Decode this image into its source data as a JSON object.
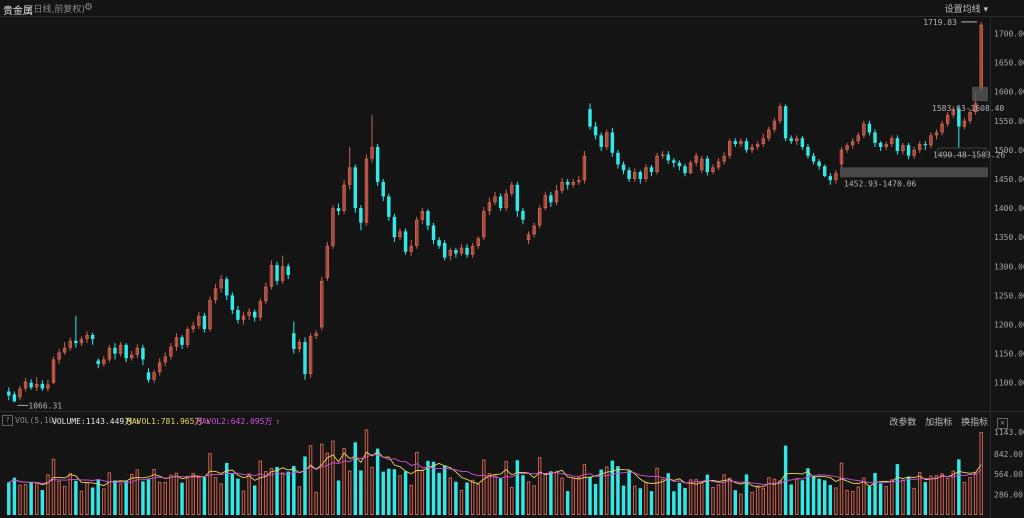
{
  "header": {
    "title": "贵金属",
    "subtitle": "(日线,前复权)",
    "settings_icon": "gear-icon",
    "ma_setting_label": "设置均线 ▾"
  },
  "price_axis": {
    "ticks": [
      "1700.00",
      "1650.00",
      "1600.00",
      "1550.00",
      "1500.00",
      "1450.00",
      "1400.00",
      "1350.00",
      "1300.00",
      "1250.00",
      "1200.00",
      "1150.00",
      "1100.00"
    ]
  },
  "annotations": {
    "high": "1719.83",
    "low": "1066.31",
    "range1": "1583.63-1608.40",
    "range2": "1490.48-1503.26",
    "range3": "1452.93-1470.06"
  },
  "volume_bar": {
    "help_icon": "?",
    "name": "VOL(5,10)",
    "volume": "VOLUME:1143.449万",
    "mavol1": "MAVOL1:781.965万",
    "mavol2": "MAVOL2:642.095万",
    "arrow_symbol": "↑",
    "tools": [
      "改参数",
      "加指标",
      "换指标"
    ],
    "close_icon": "×"
  },
  "volume_axis": {
    "ticks": [
      "1143.00",
      "842.00",
      "564.00",
      "286.00"
    ]
  },
  "colors": {
    "up": "#d0604e",
    "down": "#34e8e8",
    "mavol1": "#e8d85a",
    "mavol2": "#d24fd8",
    "grid": "#262626"
  },
  "chart_data": {
    "type": "candlestick",
    "ylim": [
      1060,
      1730
    ],
    "highest": 1719.83,
    "lowest": 1066.31,
    "candles": [
      [
        1085,
        1078,
        1092,
        1070
      ],
      [
        1080,
        1068,
        1085,
        1066.31
      ],
      [
        1075,
        1090,
        1095,
        1070
      ],
      [
        1090,
        1102,
        1108,
        1085
      ],
      [
        1100,
        1092,
        1106,
        1088
      ],
      [
        1092,
        1098,
        1110,
        1086
      ],
      [
        1098,
        1090,
        1104,
        1086
      ],
      [
        1090,
        1097,
        1105,
        1085
      ],
      [
        1100,
        1140,
        1145,
        1098
      ],
      [
        1140,
        1152,
        1158,
        1132
      ],
      [
        1152,
        1160,
        1170,
        1148
      ],
      [
        1160,
        1172,
        1178,
        1155
      ],
      [
        1172,
        1168,
        1215,
        1160
      ],
      [
        1168,
        1175,
        1180,
        1163
      ],
      [
        1175,
        1182,
        1188,
        1168
      ],
      [
        1182,
        1175,
        1186,
        1165
      ],
      [
        1138,
        1132,
        1142,
        1125
      ],
      [
        1132,
        1140,
        1146,
        1128
      ],
      [
        1140,
        1160,
        1165,
        1135
      ],
      [
        1160,
        1150,
        1168,
        1140
      ],
      [
        1150,
        1165,
        1170,
        1145
      ],
      [
        1165,
        1142,
        1168,
        1135
      ],
      [
        1142,
        1148,
        1155,
        1138
      ],
      [
        1148,
        1160,
        1166,
        1142
      ],
      [
        1160,
        1140,
        1165,
        1130
      ],
      [
        1118,
        1105,
        1125,
        1100
      ],
      [
        1105,
        1118,
        1122,
        1100
      ],
      [
        1118,
        1135,
        1142,
        1112
      ],
      [
        1135,
        1145,
        1152,
        1128
      ],
      [
        1145,
        1162,
        1168,
        1140
      ],
      [
        1162,
        1178,
        1185,
        1155
      ],
      [
        1178,
        1165,
        1182,
        1158
      ],
      [
        1165,
        1192,
        1196,
        1160
      ],
      [
        1192,
        1198,
        1205,
        1186
      ],
      [
        1198,
        1215,
        1222,
        1192
      ],
      [
        1215,
        1192,
        1220,
        1186
      ],
      [
        1192,
        1242,
        1248,
        1188
      ],
      [
        1242,
        1262,
        1270,
        1236
      ],
      [
        1262,
        1278,
        1285,
        1255
      ],
      [
        1278,
        1250,
        1282,
        1242
      ],
      [
        1250,
        1225,
        1255,
        1218
      ],
      [
        1225,
        1208,
        1232,
        1202
      ],
      [
        1208,
        1215,
        1222,
        1200
      ],
      [
        1215,
        1222,
        1228,
        1208
      ],
      [
        1222,
        1212,
        1226,
        1205
      ],
      [
        1212,
        1240,
        1245,
        1206
      ],
      [
        1240,
        1265,
        1272,
        1235
      ],
      [
        1265,
        1302,
        1310,
        1260
      ],
      [
        1302,
        1275,
        1308,
        1268
      ],
      [
        1275,
        1300,
        1318,
        1270
      ],
      [
        1300,
        1285,
        1305,
        1278
      ],
      [
        1185,
        1158,
        1205,
        1150
      ],
      [
        1158,
        1170,
        1175,
        1152
      ],
      [
        1170,
        1115,
        1178,
        1105
      ],
      [
        1115,
        1180,
        1185,
        1108
      ],
      [
        1180,
        1185,
        1190,
        1175
      ],
      [
        1195,
        1275,
        1282,
        1190
      ],
      [
        1280,
        1335,
        1342,
        1275
      ],
      [
        1335,
        1400,
        1405,
        1330
      ],
      [
        1400,
        1395,
        1408,
        1388
      ],
      [
        1395,
        1440,
        1448,
        1390
      ],
      [
        1440,
        1470,
        1505,
        1432
      ],
      [
        1470,
        1400,
        1475,
        1392
      ],
      [
        1400,
        1375,
        1405,
        1362
      ],
      [
        1375,
        1485,
        1492,
        1370
      ],
      [
        1485,
        1505,
        1560,
        1478
      ],
      [
        1505,
        1445,
        1510,
        1438
      ],
      [
        1445,
        1420,
        1450,
        1412
      ],
      [
        1420,
        1385,
        1425,
        1378
      ],
      [
        1385,
        1350,
        1390,
        1342
      ],
      [
        1350,
        1360,
        1365,
        1345
      ],
      [
        1360,
        1325,
        1365,
        1320
      ],
      [
        1325,
        1335,
        1345,
        1318
      ],
      [
        1335,
        1380,
        1385,
        1330
      ],
      [
        1380,
        1395,
        1400,
        1372
      ],
      [
        1395,
        1370,
        1398,
        1362
      ],
      [
        1370,
        1345,
        1375,
        1338
      ],
      [
        1345,
        1335,
        1350,
        1330
      ],
      [
        1340,
        1315,
        1345,
        1310
      ],
      [
        1318,
        1328,
        1332,
        1310
      ],
      [
        1328,
        1322,
        1332,
        1315
      ],
      [
        1322,
        1332,
        1338,
        1318
      ],
      [
        1332,
        1320,
        1338,
        1315
      ],
      [
        1320,
        1335,
        1340,
        1315
      ],
      [
        1335,
        1348,
        1352,
        1330
      ],
      [
        1350,
        1395,
        1402,
        1345
      ],
      [
        1395,
        1410,
        1418,
        1388
      ],
      [
        1410,
        1420,
        1428,
        1405
      ],
      [
        1420,
        1400,
        1425,
        1395
      ],
      [
        1400,
        1425,
        1432,
        1395
      ],
      [
        1425,
        1440,
        1445,
        1420
      ],
      [
        1440,
        1395,
        1445,
        1385
      ],
      [
        1395,
        1380,
        1400,
        1372
      ],
      [
        1345,
        1355,
        1360,
        1338
      ],
      [
        1355,
        1370,
        1375,
        1350
      ],
      [
        1370,
        1400,
        1405,
        1365
      ],
      [
        1400,
        1422,
        1428,
        1396
      ],
      [
        1422,
        1410,
        1428,
        1402
      ],
      [
        1410,
        1430,
        1440,
        1405
      ],
      [
        1430,
        1445,
        1452,
        1425
      ],
      [
        1445,
        1440,
        1450,
        1432
      ],
      [
        1440,
        1445,
        1450,
        1435
      ],
      [
        1445,
        1448,
        1455,
        1440
      ],
      [
        1448,
        1490,
        1498,
        1442
      ],
      [
        1570,
        1540,
        1580,
        1535
      ],
      [
        1540,
        1525,
        1548,
        1518
      ],
      [
        1525,
        1505,
        1530,
        1498
      ],
      [
        1505,
        1530,
        1535,
        1500
      ],
      [
        1530,
        1495,
        1538,
        1488
      ],
      [
        1495,
        1475,
        1500,
        1468
      ],
      [
        1475,
        1465,
        1480,
        1458
      ],
      [
        1465,
        1450,
        1470,
        1445
      ],
      [
        1450,
        1462,
        1468,
        1445
      ],
      [
        1462,
        1450,
        1465,
        1442
      ],
      [
        1450,
        1470,
        1475,
        1445
      ],
      [
        1470,
        1462,
        1474,
        1455
      ],
      [
        1462,
        1490,
        1495,
        1458
      ],
      [
        1490,
        1492,
        1498,
        1485
      ],
      [
        1492,
        1482,
        1498,
        1476
      ],
      [
        1482,
        1478,
        1486,
        1470
      ],
      [
        1478,
        1472,
        1482,
        1465
      ],
      [
        1472,
        1460,
        1476,
        1455
      ],
      [
        1460,
        1478,
        1482,
        1458
      ],
      [
        1478,
        1490,
        1495,
        1472
      ],
      [
        1465,
        1485,
        1490,
        1460
      ],
      [
        1485,
        1462,
        1490,
        1456
      ],
      [
        1462,
        1470,
        1475,
        1458
      ],
      [
        1470,
        1480,
        1486,
        1465
      ],
      [
        1480,
        1490,
        1496,
        1475
      ],
      [
        1490,
        1515,
        1520,
        1485
      ],
      [
        1515,
        1510,
        1520,
        1505
      ],
      [
        1510,
        1515,
        1520,
        1505
      ],
      [
        1515,
        1500,
        1520,
        1495
      ],
      [
        1500,
        1505,
        1510,
        1495
      ],
      [
        1505,
        1510,
        1515,
        1500
      ],
      [
        1510,
        1520,
        1528,
        1505
      ],
      [
        1520,
        1535,
        1540,
        1515
      ],
      [
        1535,
        1550,
        1555,
        1530
      ],
      [
        1550,
        1575,
        1580,
        1545
      ],
      [
        1575,
        1520,
        1578,
        1515
      ],
      [
        1520,
        1515,
        1525,
        1510
      ],
      [
        1515,
        1520,
        1525,
        1508
      ],
      [
        1520,
        1505,
        1524,
        1500
      ],
      [
        1505,
        1490,
        1510,
        1485
      ],
      [
        1490,
        1480,
        1495,
        1475
      ],
      [
        1480,
        1472,
        1484,
        1466
      ],
      [
        1472,
        1455,
        1475,
        1452.93
      ],
      [
        1455,
        1448,
        1460,
        1440
      ],
      [
        1448,
        1460,
        1465,
        1442
      ],
      [
        1475,
        1500,
        1505,
        1470
      ],
      [
        1500,
        1508,
        1512,
        1495
      ],
      [
        1508,
        1515,
        1520,
        1502
      ],
      [
        1515,
        1525,
        1530,
        1510
      ],
      [
        1525,
        1545,
        1550,
        1520
      ],
      [
        1545,
        1530,
        1550,
        1525
      ],
      [
        1530,
        1512,
        1535,
        1505
      ],
      [
        1512,
        1505,
        1515,
        1498
      ],
      [
        1505,
        1510,
        1514,
        1500
      ],
      [
        1510,
        1520,
        1525,
        1505
      ],
      [
        1520,
        1498,
        1525,
        1492
      ],
      [
        1498,
        1508,
        1512,
        1492
      ],
      [
        1508,
        1490,
        1512,
        1484
      ],
      [
        1490,
        1500,
        1505,
        1485
      ],
      [
        1500,
        1510,
        1515,
        1495
      ],
      [
        1510,
        1508,
        1515,
        1500
      ],
      [
        1508,
        1525,
        1530,
        1503
      ],
      [
        1525,
        1530,
        1535,
        1518
      ],
      [
        1530,
        1545,
        1550,
        1525
      ],
      [
        1545,
        1560,
        1565,
        1540
      ],
      [
        1560,
        1570,
        1575,
        1555
      ],
      [
        1570,
        1540,
        1575,
        1503.26
      ],
      [
        1540,
        1550,
        1555,
        1535
      ],
      [
        1550,
        1565,
        1570,
        1545
      ],
      [
        1565,
        1580,
        1600,
        1560
      ],
      [
        1605,
        1715,
        1719.83,
        1600
      ]
    ],
    "volume": {
      "ylim": [
        0,
        1200
      ],
      "mavol1": 781.965,
      "mavol2": 642.095,
      "last": 1143.449
    }
  }
}
